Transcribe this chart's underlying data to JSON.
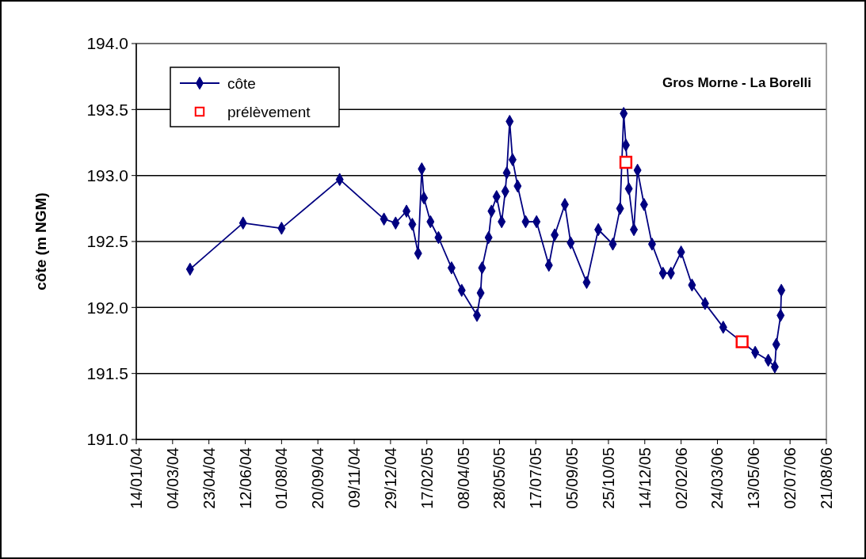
{
  "chart_data": {
    "type": "line",
    "title": "Gros Morne - La Borelli",
    "ylabel": "côte (m NGM)",
    "xlim": [
      "2004-01-14",
      "2006-08-21"
    ],
    "xticks": [
      {
        "value": "2004-01-14",
        "label": "14/01/04"
      },
      {
        "value": "2004-03-04",
        "label": "04/03/04"
      },
      {
        "value": "2004-04-23",
        "label": "23/04/04"
      },
      {
        "value": "2004-06-12",
        "label": "12/06/04"
      },
      {
        "value": "2004-08-01",
        "label": "01/08/04"
      },
      {
        "value": "2004-09-20",
        "label": "20/09/04"
      },
      {
        "value": "2004-11-09",
        "label": "09/11/04"
      },
      {
        "value": "2004-12-29",
        "label": "29/12/04"
      },
      {
        "value": "2005-02-17",
        "label": "17/02/05"
      },
      {
        "value": "2005-04-08",
        "label": "08/04/05"
      },
      {
        "value": "2005-05-28",
        "label": "28/05/05"
      },
      {
        "value": "2005-07-17",
        "label": "17/07/05"
      },
      {
        "value": "2005-09-05",
        "label": "05/09/05"
      },
      {
        "value": "2005-10-25",
        "label": "25/10/05"
      },
      {
        "value": "2005-12-14",
        "label": "14/12/05"
      },
      {
        "value": "2006-02-02",
        "label": "02/02/06"
      },
      {
        "value": "2006-03-24",
        "label": "24/03/06"
      },
      {
        "value": "2006-05-13",
        "label": "13/05/06"
      },
      {
        "value": "2006-07-02",
        "label": "02/07/06"
      },
      {
        "value": "2006-08-21",
        "label": "21/08/06"
      }
    ],
    "ylim": [
      191,
      194
    ],
    "yticks": [
      {
        "value": 191,
        "label": "191.0"
      },
      {
        "value": 191.5,
        "label": "191.5"
      },
      {
        "value": 192,
        "label": "192.0"
      },
      {
        "value": 192.5,
        "label": "192.5"
      },
      {
        "value": 193,
        "label": "193.0"
      },
      {
        "value": 193.5,
        "label": "193.5"
      },
      {
        "value": 194,
        "label": "194.0"
      }
    ],
    "grid": "y",
    "legend": "top left",
    "series": [
      {
        "name": "côte",
        "type": "line",
        "color": "#000080",
        "marker": "diamond",
        "line_style": "solid",
        "x": [
          "2004-03-28",
          "2004-06-09",
          "2004-08-01",
          "2004-10-20",
          "2004-12-20",
          "2005-01-05",
          "2005-01-20",
          "2005-01-28",
          "2005-02-05",
          "2005-02-10",
          "2005-02-13",
          "2005-02-22",
          "2005-03-05",
          "2005-03-23",
          "2005-04-06",
          "2005-04-27",
          "2005-05-02",
          "2005-05-04",
          "2005-05-13",
          "2005-05-17",
          "2005-05-24",
          "2005-05-31",
          "2005-06-05",
          "2005-06-07",
          "2005-06-11",
          "2005-06-15",
          "2005-06-22",
          "2005-07-03",
          "2005-07-18",
          "2005-08-04",
          "2005-08-12",
          "2005-08-26",
          "2005-09-03",
          "2005-09-25",
          "2005-10-11",
          "2005-10-31",
          "2005-11-10",
          "2005-11-15",
          "2005-11-18",
          "2005-11-22",
          "2005-11-29",
          "2005-12-04",
          "2005-12-13",
          "2005-12-24",
          "2006-01-08",
          "2006-01-19",
          "2006-02-02",
          "2006-02-17",
          "2006-03-07",
          "2006-04-01",
          "2006-05-15",
          "2006-06-02",
          "2006-06-11",
          "2006-06-13",
          "2006-06-19",
          "2006-06-20"
        ],
        "values": [
          192.29,
          192.64,
          192.6,
          192.97,
          192.67,
          192.64,
          192.73,
          192.63,
          192.41,
          193.05,
          192.83,
          192.65,
          192.53,
          192.3,
          192.13,
          191.94,
          192.11,
          192.3,
          192.53,
          192.73,
          192.84,
          192.65,
          192.88,
          193.02,
          193.41,
          193.12,
          192.92,
          192.65,
          192.65,
          192.32,
          192.55,
          192.78,
          192.49,
          192.19,
          192.59,
          192.48,
          192.75,
          193.47,
          193.23,
          192.9,
          192.59,
          193.04,
          192.78,
          192.48,
          192.26,
          192.26,
          192.42,
          192.17,
          192.03,
          191.85,
          191.66,
          191.6,
          191.55,
          191.72,
          191.94,
          192.13
        ]
      },
      {
        "name": "prélèvement",
        "type": "scatter",
        "color": "#ff0000",
        "marker": "square",
        "x": [
          "2005-11-18",
          "2006-04-27"
        ],
        "values": [
          193.1,
          191.74
        ]
      }
    ]
  }
}
